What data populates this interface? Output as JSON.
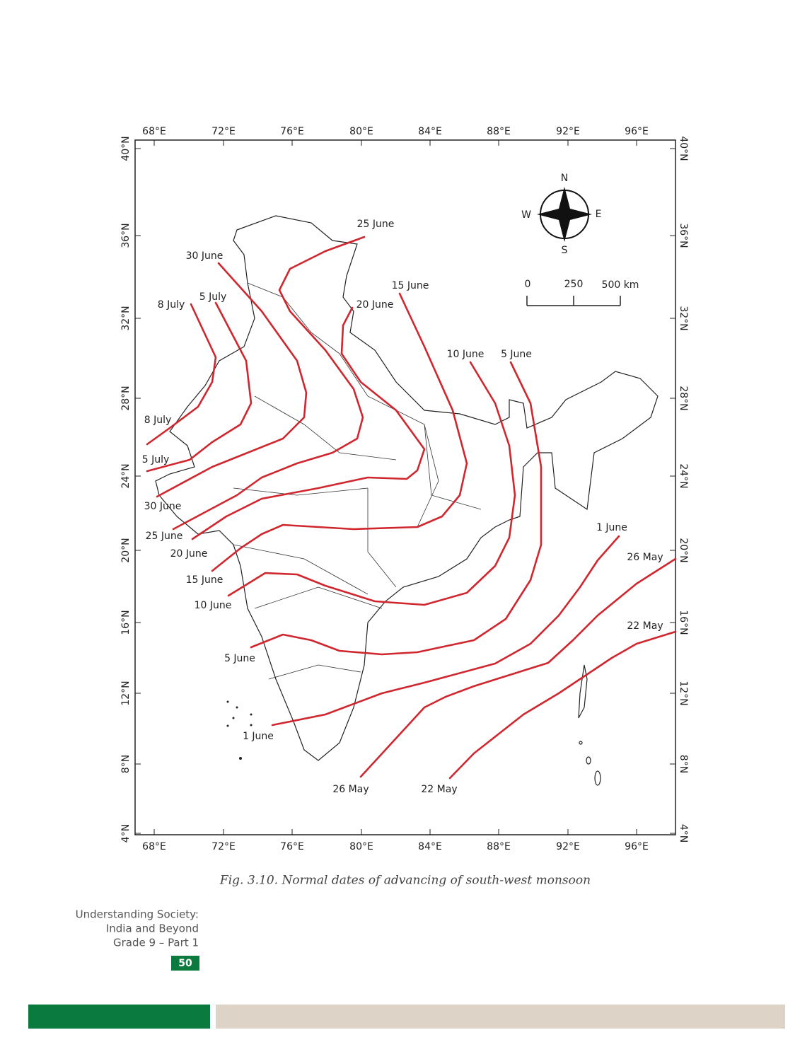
{
  "map": {
    "top_labels": [
      "68°E",
      "72°E",
      "76°E",
      "80°E",
      "84°E",
      "88°E",
      "92°E",
      "96°E"
    ],
    "bottom_labels": [
      "68°E",
      "72°E",
      "76°E",
      "80°E",
      "84°E",
      "88°E",
      "92°E",
      "96°E"
    ],
    "left_labels": [
      "40°N",
      "36°N",
      "32°N",
      "28°N",
      "24°N",
      "20°N",
      "16°N",
      "12°N",
      "8°N",
      "4°N"
    ],
    "right_labels": [
      "40°N",
      "36°N",
      "32°N",
      "28°N",
      "24°N",
      "20°N",
      "16°N",
      "12°N",
      "8°N",
      "4°N"
    ],
    "compass": {
      "n": "N",
      "e": "E",
      "s": "S",
      "w": "W"
    },
    "scale": [
      "0",
      "250",
      "500 km"
    ],
    "line_labels": [
      "25 June",
      "30 June",
      "5 July",
      "8 July",
      "15 June",
      "20 June",
      "10 June",
      "5 June",
      "8 July",
      "5 July",
      "30 June",
      "25 June",
      "20 June",
      "15 June",
      "10 June",
      "5 June",
      "1 June",
      "1 June",
      "26 May",
      "22 May",
      "26 May",
      "22 May"
    ]
  },
  "caption": "Fig. 3.10.  Normal dates of advancing of south-west monsoon",
  "footer": {
    "book": [
      "Understanding Society:",
      "India and Beyond",
      "Grade 9 – Part 1"
    ],
    "page": "50"
  }
}
